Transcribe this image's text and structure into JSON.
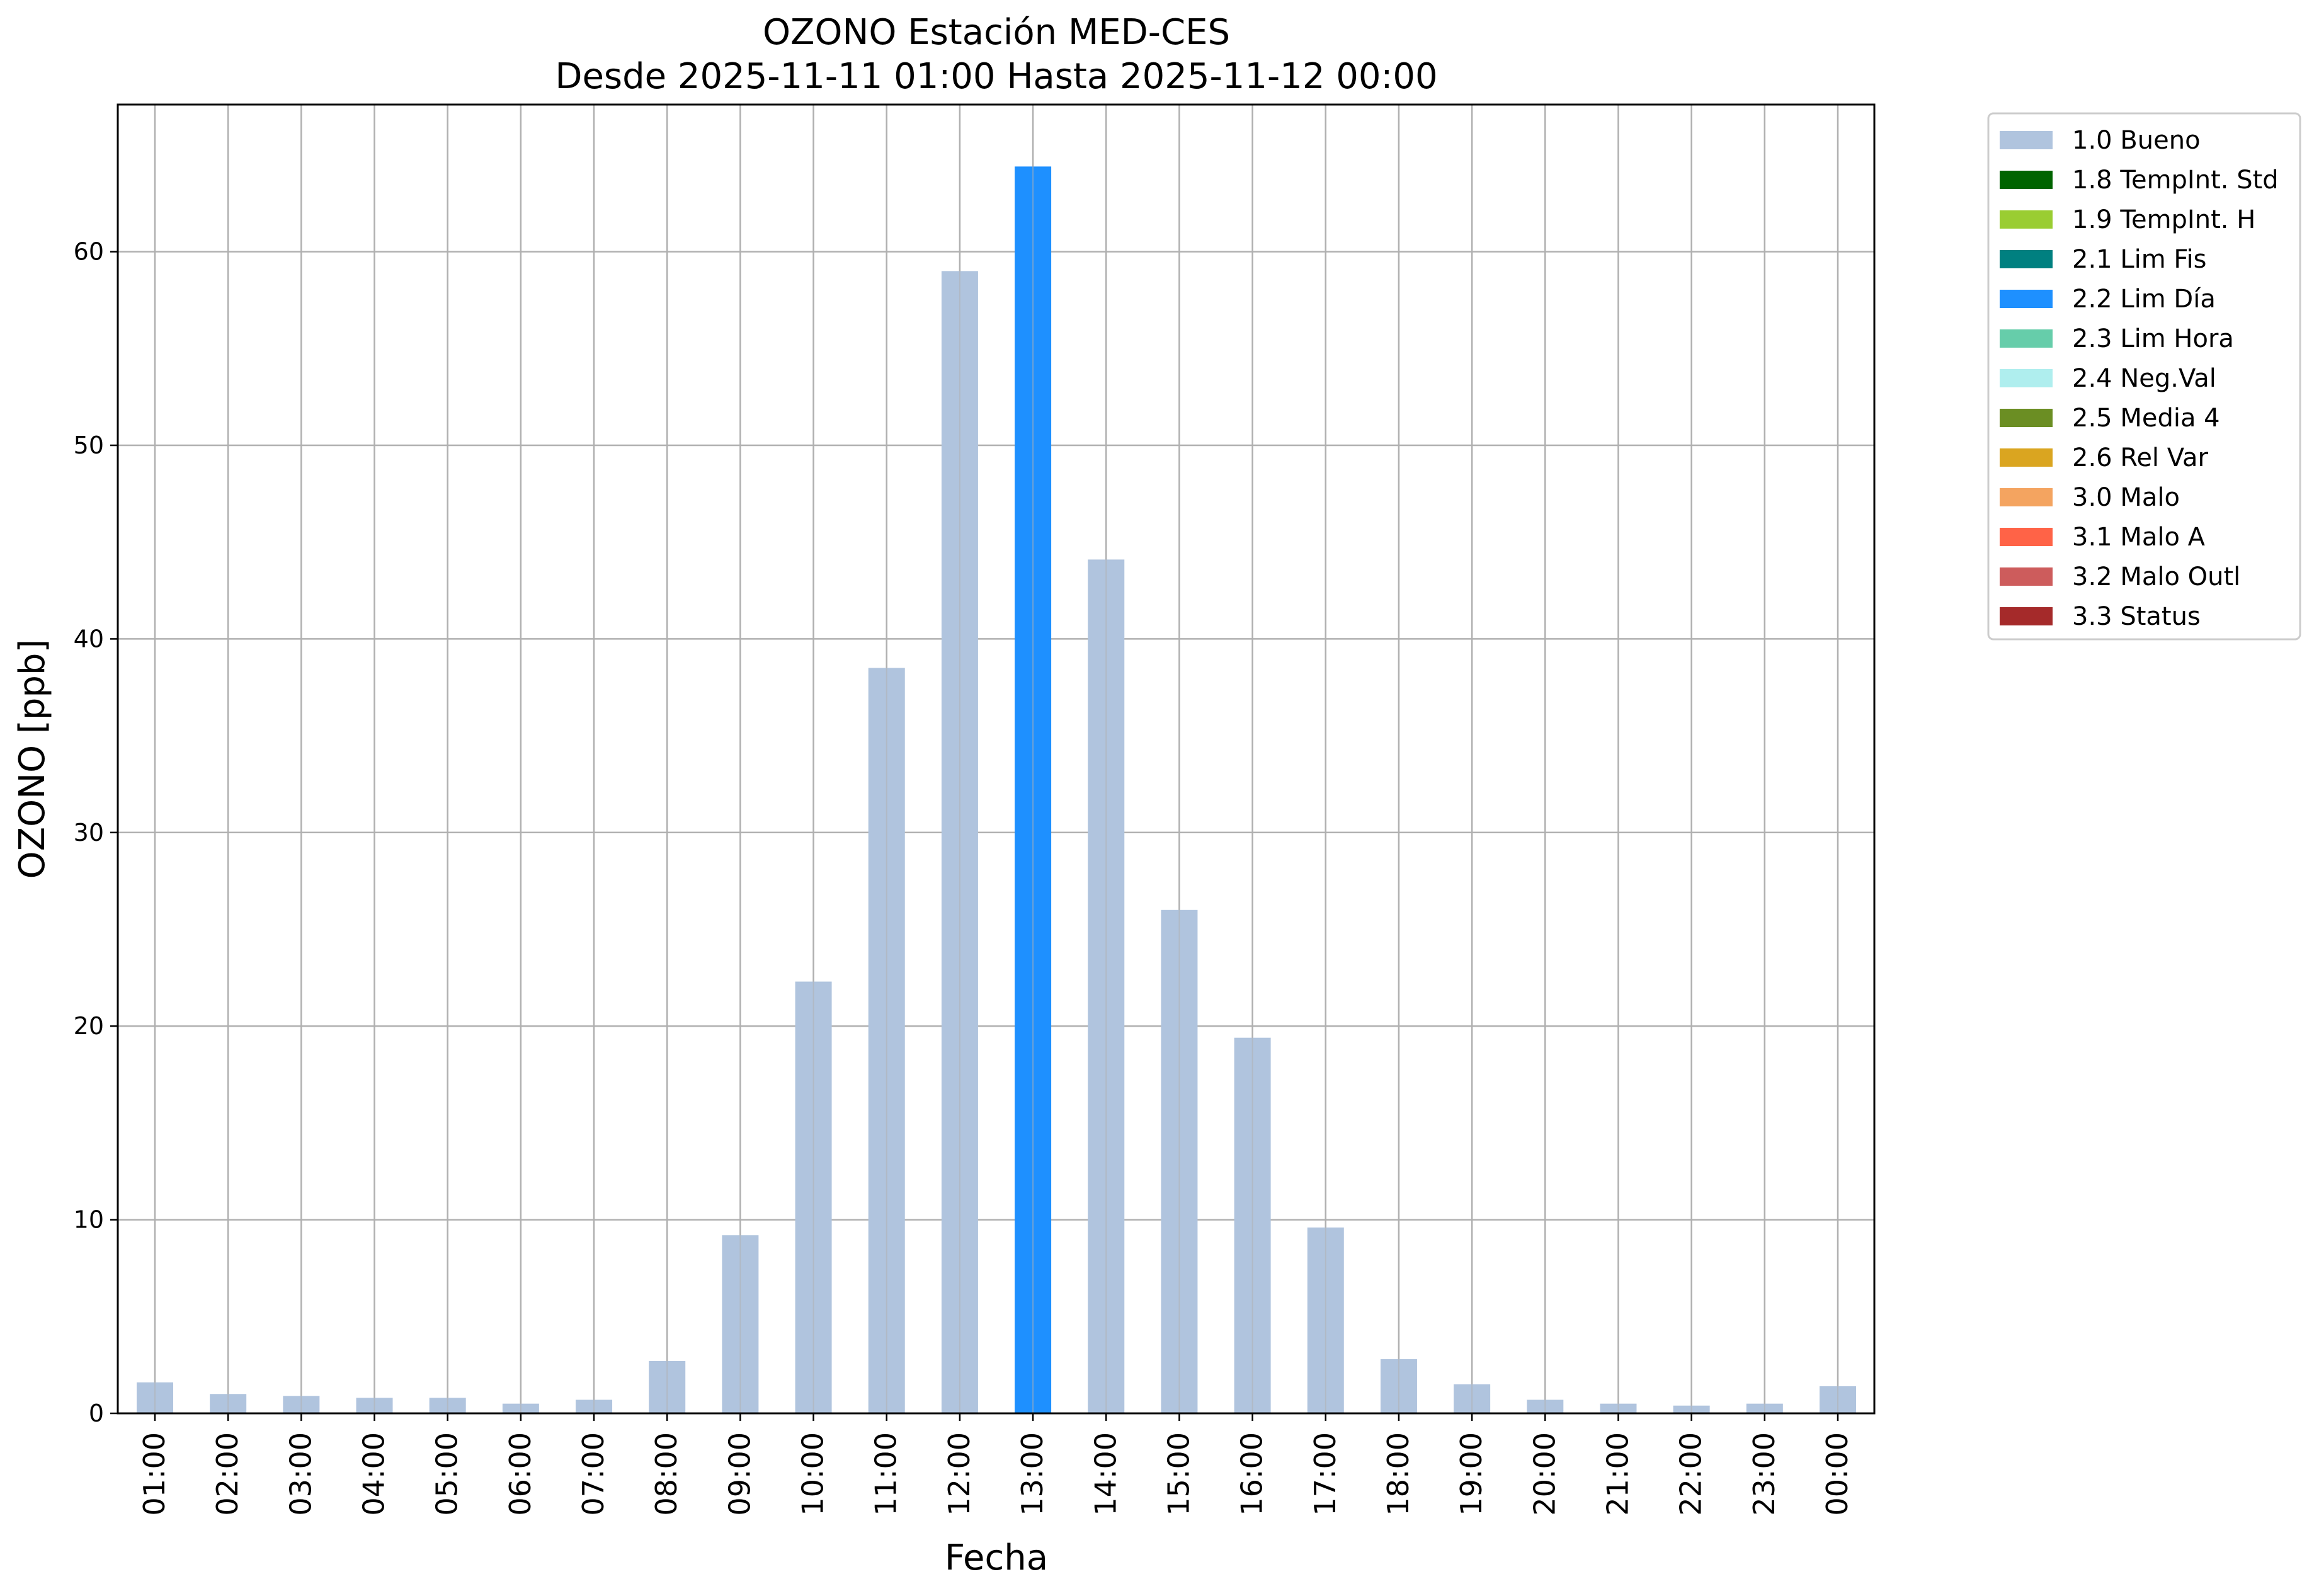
{
  "chart_data": {
    "type": "bar",
    "title": "OZONO Estación MED-CES",
    "subtitle": "Desde 2025-11-11 01:00 Hasta 2025-11-12 00:00",
    "xlabel": "Fecha",
    "ylabel": "OZONO [ppb]",
    "ylim": [
      0,
      67.6
    ],
    "yticks": [
      0,
      10,
      20,
      30,
      40,
      50,
      60
    ],
    "grid": true,
    "legend_position": "outside top-right",
    "categories": [
      "01:00",
      "02:00",
      "03:00",
      "04:00",
      "05:00",
      "06:00",
      "07:00",
      "08:00",
      "09:00",
      "10:00",
      "11:00",
      "12:00",
      "13:00",
      "14:00",
      "15:00",
      "16:00",
      "17:00",
      "18:00",
      "19:00",
      "20:00",
      "21:00",
      "22:00",
      "23:00",
      "00:00"
    ],
    "values": [
      1.6,
      1.0,
      0.9,
      0.8,
      0.8,
      0.5,
      0.7,
      2.7,
      9.2,
      22.3,
      38.5,
      59.0,
      64.4,
      44.1,
      26.0,
      19.4,
      9.6,
      2.8,
      1.5,
      0.7,
      0.5,
      0.4,
      0.5,
      1.4
    ],
    "flags": [
      "1.0 Bueno",
      "1.0 Bueno",
      "1.0 Bueno",
      "1.0 Bueno",
      "1.0 Bueno",
      "1.0 Bueno",
      "1.0 Bueno",
      "1.0 Bueno",
      "1.0 Bueno",
      "1.0 Bueno",
      "1.0 Bueno",
      "1.0 Bueno",
      "2.2 Lim Día",
      "1.0 Bueno",
      "1.0 Bueno",
      "1.0 Bueno",
      "1.0 Bueno",
      "1.0 Bueno",
      "1.0 Bueno",
      "1.0 Bueno",
      "1.0 Bueno",
      "1.0 Bueno",
      "1.0 Bueno",
      "1.0 Bueno"
    ],
    "legend": [
      {
        "label": "1.0 Bueno",
        "color": "#b0c4de"
      },
      {
        "label": "1.8 TempInt. Std",
        "color": "#006400"
      },
      {
        "label": "1.9 TempInt. H",
        "color": "#9acd32"
      },
      {
        "label": "2.1 Lim Fis",
        "color": "#008080"
      },
      {
        "label": "2.2 Lim Día",
        "color": "#1e90ff"
      },
      {
        "label": "2.3 Lim Hora",
        "color": "#66cdaa"
      },
      {
        "label": "2.4 Neg.Val",
        "color": "#afeeee"
      },
      {
        "label": "2.5 Media 4",
        "color": "#6b8e23"
      },
      {
        "label": "2.6 Rel Var",
        "color": "#daa520"
      },
      {
        "label": "3.0 Malo",
        "color": "#f4a460"
      },
      {
        "label": "3.1 Malo A",
        "color": "#ff6347"
      },
      {
        "label": "3.2 Malo Outl",
        "color": "#cd5c5c"
      },
      {
        "label": "3.3 Status",
        "color": "#a52a2a"
      }
    ]
  }
}
